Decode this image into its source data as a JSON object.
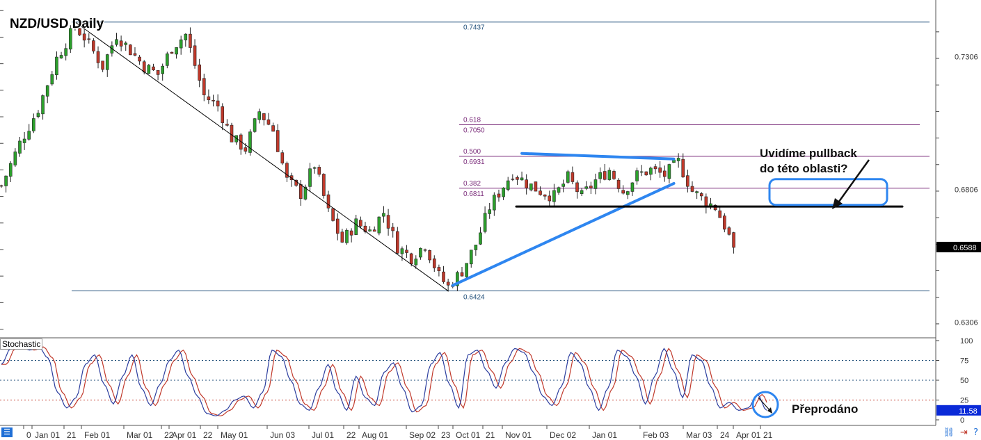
{
  "title": "NZD/USD Daily",
  "chart_data": {
    "type": "candlestick",
    "instrument": "NZD/USD",
    "timeframe": "Daily",
    "price_axis": {
      "ticks": [
        "0.7306",
        "0.6806",
        "0.6306"
      ],
      "current_price": "0.6588",
      "range": [
        0.625,
        0.752
      ]
    },
    "time_axis": {
      "labels": [
        "0",
        "Jan 01",
        "21",
        "Feb 01",
        "Mar 01",
        "22",
        "Apr 01",
        "22",
        "May 01",
        "Jun 03",
        "Jul 01",
        "22",
        "Aug 01",
        "Sep 02",
        "23",
        "Oct 01",
        "21",
        "Nov 01",
        "Dec 02",
        "Jan 01",
        "Feb 03",
        "Mar 03",
        "24",
        "Apr 01",
        "21"
      ]
    },
    "fibonacci": [
      {
        "ratio": "",
        "price": "0.7437",
        "color": "#1f4e79"
      },
      {
        "ratio": "0.618",
        "price": "0.7050",
        "color": "#7b2d7b"
      },
      {
        "ratio": "0.500",
        "price": "0.6931",
        "color": "#7b2d7b"
      },
      {
        "ratio": "0.382",
        "price": "0.6811",
        "color": "#7b2d7b"
      },
      {
        "ratio": "",
        "price": "0.6424",
        "color": "#1f4e79"
      }
    ],
    "price_path": [
      [
        0,
        0.682
      ],
      [
        4,
        0.698
      ],
      [
        8,
        0.711
      ],
      [
        12,
        0.73
      ],
      [
        16,
        0.742
      ],
      [
        18,
        0.738
      ],
      [
        22,
        0.727
      ],
      [
        25,
        0.739
      ],
      [
        28,
        0.733
      ],
      [
        31,
        0.727
      ],
      [
        34,
        0.724
      ],
      [
        37,
        0.734
      ],
      [
        40,
        0.739
      ],
      [
        44,
        0.716
      ],
      [
        47,
        0.712
      ],
      [
        50,
        0.7
      ],
      [
        53,
        0.696
      ],
      [
        56,
        0.71
      ],
      [
        59,
        0.703
      ],
      [
        62,
        0.684
      ],
      [
        65,
        0.679
      ],
      [
        68,
        0.69
      ],
      [
        71,
        0.672
      ],
      [
        74,
        0.661
      ],
      [
        77,
        0.668
      ],
      [
        80,
        0.665
      ],
      [
        83,
        0.672
      ],
      [
        86,
        0.659
      ],
      [
        89,
        0.655
      ],
      [
        92,
        0.66
      ],
      [
        95,
        0.648
      ],
      [
        97,
        0.644
      ],
      [
        100,
        0.65
      ],
      [
        103,
        0.66
      ],
      [
        106,
        0.674
      ],
      [
        109,
        0.682
      ],
      [
        111,
        0.687
      ],
      [
        114,
        0.683
      ],
      [
        117,
        0.68
      ],
      [
        120,
        0.678
      ],
      [
        123,
        0.685
      ],
      [
        126,
        0.678
      ],
      [
        129,
        0.684
      ],
      [
        132,
        0.688
      ],
      [
        135,
        0.68
      ],
      [
        138,
        0.686
      ],
      [
        141,
        0.688
      ],
      [
        144,
        0.686
      ],
      [
        147,
        0.691
      ],
      [
        150,
        0.68
      ],
      [
        153,
        0.676
      ],
      [
        155,
        0.674
      ],
      [
        157,
        0.667
      ],
      [
        159,
        0.6588
      ]
    ],
    "stochastic": {
      "name": "Stochastic",
      "levels": [
        75,
        50,
        25
      ],
      "ticks": [
        "100",
        "75",
        "50",
        "25",
        "0"
      ],
      "current": "11.58",
      "k": [
        70,
        90,
        95,
        88,
        92,
        78,
        35,
        15,
        28,
        70,
        82,
        45,
        20,
        55,
        82,
        40,
        18,
        45,
        75,
        88,
        55,
        30,
        8,
        5,
        12,
        25,
        30,
        15,
        35,
        88,
        80,
        50,
        20,
        12,
        40,
        70,
        35,
        12,
        55,
        28,
        18,
        60,
        72,
        40,
        10,
        18,
        70,
        85,
        45,
        15,
        82,
        88,
        62,
        40,
        72,
        90,
        85,
        60,
        30,
        18,
        42,
        85,
        72,
        40,
        12,
        40,
        88,
        80,
        55,
        20,
        55,
        90,
        62,
        28,
        82,
        75,
        42,
        15,
        22,
        12,
        15,
        32,
        12
      ]
    },
    "trendlines": [
      {
        "name": "descending-line",
        "from": [
          16,
          0.7437
        ],
        "to": [
          97,
          0.6424
        ],
        "color": "#000000"
      },
      {
        "name": "ascending-trendline",
        "from": [
          98,
          0.6445
        ],
        "to": [
          146,
          0.6829
        ],
        "color": "#2e86f0"
      },
      {
        "name": "upper-trendline",
        "from": [
          113,
          0.6942
        ],
        "to": [
          146,
          0.6921
        ],
        "color": "#2e86f0"
      },
      {
        "name": "support-line",
        "from": [
          106,
          0.6742
        ],
        "to": [
          187,
          0.6742
        ],
        "color": "#000000"
      }
    ],
    "target_zone": {
      "price_top": 0.6845,
      "price_bottom": 0.6748,
      "color": "#2e86f0"
    }
  },
  "annotations": {
    "pullback_line1": "Uvidíme pullback",
    "pullback_line2": "do této oblasti?",
    "oversold": "Přeprodáno"
  },
  "colors": {
    "bull": "#2ca02c",
    "bear": "#c0392b",
    "blue": "#2e86f0",
    "fib": "#7b2d7b",
    "level": "#1f4e79"
  }
}
